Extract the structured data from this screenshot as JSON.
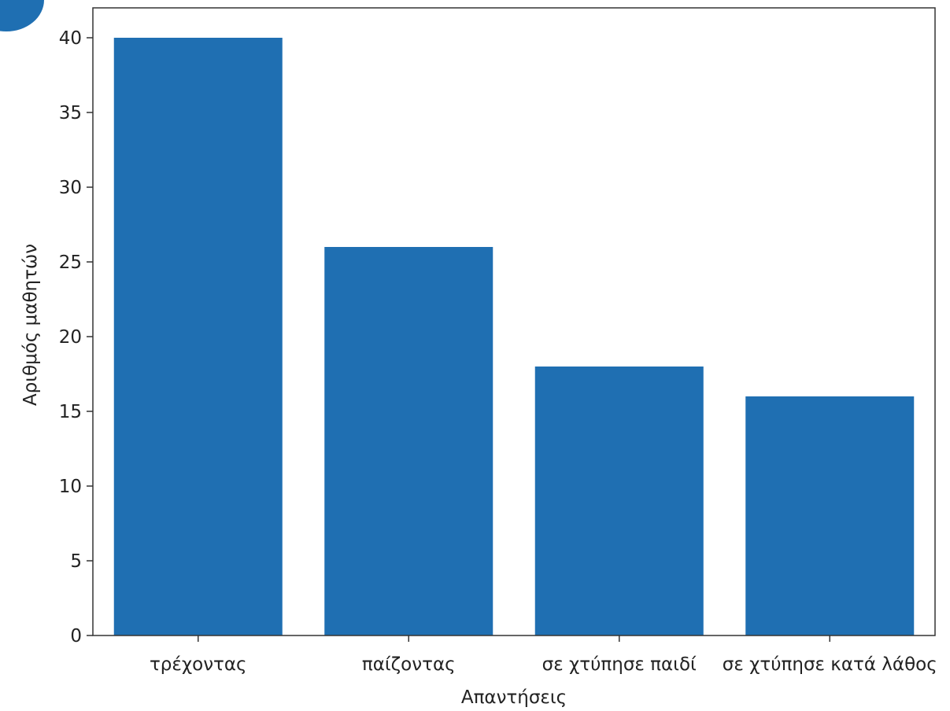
{
  "colors": {
    "bar": "#1f6fb2",
    "axis": "#333333",
    "badge": "#1f6fb2"
  },
  "chart_data": {
    "type": "bar",
    "title": "",
    "xlabel": "Απαντήσεις",
    "ylabel": "Αριθμός μαθητών",
    "categories": [
      "τρέχοντας",
      "παίζοντας",
      "σε χτύπησε παιδί",
      "σε χτύπησε κατά λάθος"
    ],
    "values": [
      40,
      26,
      18,
      16
    ],
    "ylim": [
      0,
      42
    ],
    "yticks": [
      0,
      5,
      10,
      15,
      20,
      25,
      30,
      35,
      40
    ],
    "grid": false,
    "legend": "none"
  }
}
